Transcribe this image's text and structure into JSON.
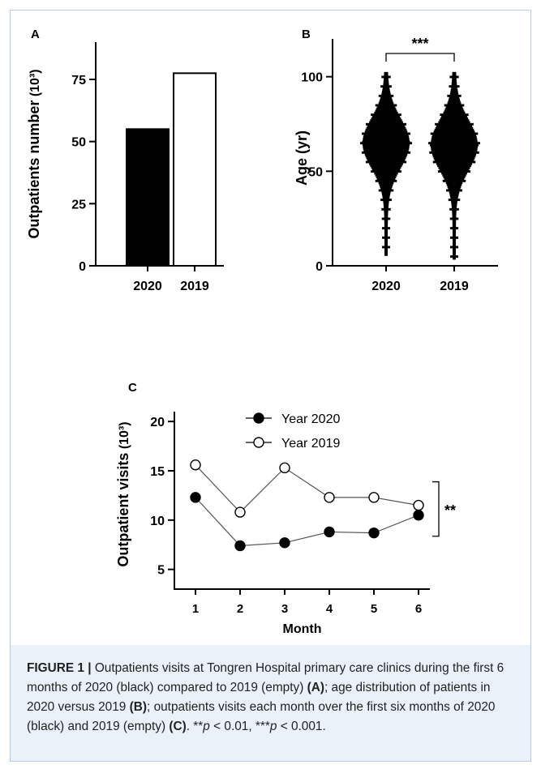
{
  "chart_data": [
    {
      "panel": "A",
      "type": "bar",
      "ylabel": "Outpatients number",
      "ylabel_unit": "(10³)",
      "categories": [
        "2020",
        "2019"
      ],
      "values": [
        55,
        77.5
      ],
      "fills": [
        "#000000",
        "#ffffff"
      ],
      "ylim": [
        0,
        90
      ],
      "yticks": [
        0,
        25,
        50,
        75
      ]
    },
    {
      "panel": "B",
      "type": "scatter",
      "ylabel": "Age (yr)",
      "categories": [
        "2020",
        "2019"
      ],
      "ylim": [
        0,
        120
      ],
      "yticks": [
        0,
        50,
        100
      ],
      "distribution": [
        {
          "group": "2020",
          "min": 6,
          "max": 102,
          "median": 65,
          "q1": 60,
          "q3": 67
        },
        {
          "group": "2019",
          "min": 4,
          "max": 102,
          "median": 64,
          "q1": 60,
          "q3": 66
        }
      ],
      "significance": "***"
    },
    {
      "panel": "C",
      "type": "line",
      "xlabel": "Month",
      "ylabel": "Outpatient visits",
      "ylabel_unit": "(10³)",
      "x": [
        1,
        2,
        3,
        4,
        5,
        6
      ],
      "ylim": [
        3,
        21
      ],
      "yticks": [
        5,
        10,
        15,
        20
      ],
      "series": [
        {
          "name": "Year 2020",
          "values": [
            12.3,
            7.4,
            7.7,
            8.8,
            8.7,
            10.5
          ],
          "marker": "filled"
        },
        {
          "name": "Year 2019",
          "values": [
            15.6,
            10.8,
            15.3,
            12.3,
            12.3,
            11.5
          ],
          "marker": "open"
        }
      ],
      "significance": "**"
    }
  ],
  "caption": {
    "title": "FIGURE 1 |",
    "text_1": " Outpatients visits at Tongren Hospital primary care clinics during the first 6 months of 2020 (black) compared to 2019 (empty) ",
    "ref_a": "(A)",
    "text_2": "; age distribution of patients in 2020 versus 2019 ",
    "ref_b": "(B)",
    "text_3": "; outpatients visits each month over the first six months of 2020 (black) and 2019 (empty) ",
    "ref_c": "(C)",
    "text_4": ". **",
    "p_1": "p",
    "text_5": " < 0.01, ***",
    "p_2": "p",
    "text_6": " < 0.001."
  }
}
